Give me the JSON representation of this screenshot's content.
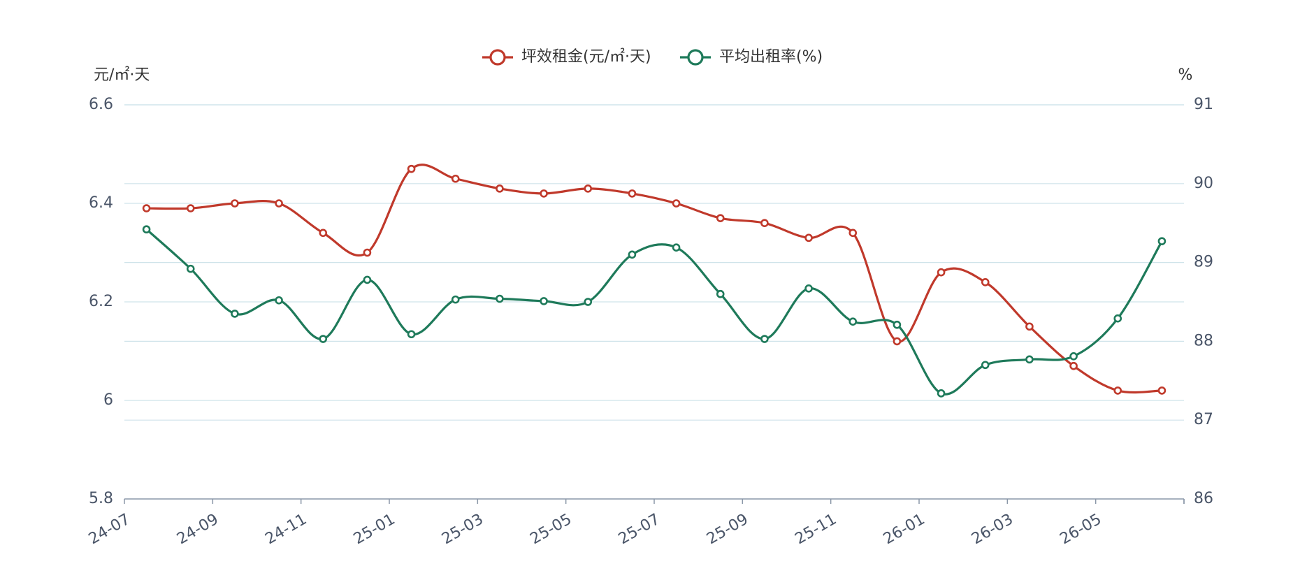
{
  "chart_data": {
    "type": "line",
    "categories": [
      "24-07",
      "24-08",
      "24-09",
      "24-10",
      "24-11",
      "24-12",
      "25-01",
      "25-02",
      "25-03",
      "25-04",
      "25-05",
      "25-06",
      "25-07",
      "25-08",
      "25-09",
      "25-10",
      "25-11",
      "25-12",
      "26-01",
      "26-02",
      "26-03",
      "26-04",
      "26-05",
      "26-06"
    ],
    "x_tick_labels": [
      "24-07",
      "24-09",
      "24-11",
      "25-01",
      "25-03",
      "25-05",
      "25-07",
      "25-09",
      "25-11",
      "26-01",
      "26-03",
      "26-05"
    ],
    "series": [
      {
        "name": "坪效租金(元/㎡·天)",
        "axis": "left",
        "color": "#c0392b",
        "values": [
          6.39,
          6.39,
          6.4,
          6.4,
          6.34,
          6.3,
          6.47,
          6.45,
          6.43,
          6.42,
          6.43,
          6.42,
          6.4,
          6.37,
          6.36,
          6.33,
          6.34,
          6.12,
          6.26,
          6.24,
          6.15,
          6.07,
          6.02,
          6.02
        ]
      },
      {
        "name": "平均出租率(%)",
        "axis": "right",
        "color": "#1e7a5a",
        "values": [
          89.42,
          88.92,
          88.35,
          88.52,
          88.03,
          88.78,
          88.09,
          88.53,
          88.54,
          88.51,
          88.5,
          89.1,
          89.19,
          88.6,
          88.03,
          88.67,
          88.25,
          88.21,
          87.34,
          87.7,
          87.77,
          87.81,
          88.29,
          89.27
        ]
      }
    ],
    "y_left": {
      "unit": "元/㎡·天",
      "ylim": [
        5.8,
        6.6
      ],
      "ticks": [
        "5.8",
        "6",
        "6.2",
        "6.4",
        "6.6"
      ]
    },
    "y_right": {
      "unit": "%",
      "ylim": [
        86,
        91
      ],
      "ticks": [
        "86",
        "87",
        "88",
        "89",
        "90",
        "91"
      ]
    },
    "legend_position": "top-center",
    "grid": true
  }
}
